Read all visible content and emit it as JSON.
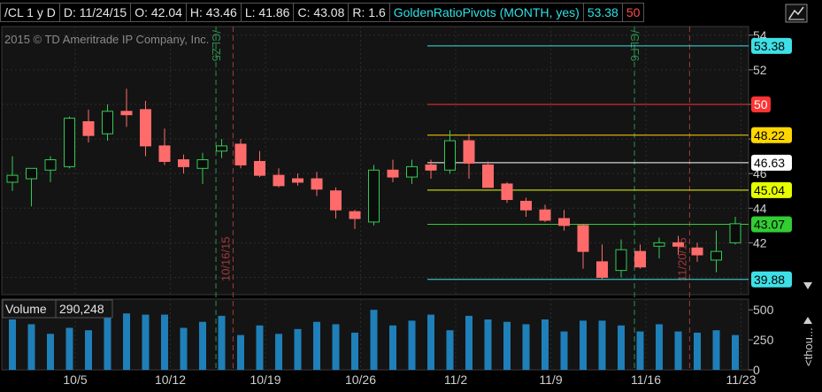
{
  "header": {
    "symbol": "/CL 1 y D",
    "date": "D: 11/24/15",
    "open": "O: 42.04",
    "high": "H: 43.46",
    "low": "L: 41.86",
    "close": "C: 43.08",
    "range": "R: 1.6",
    "study": "GoldenRatioPivots (MONTH, yes)",
    "study_val1": "53.38",
    "study_val2": "50"
  },
  "copyright": "2015 © TD Ameritrade IP Company, Inc.",
  "chart_data": {
    "type": "candlestick",
    "yrange": [
      39,
      54.5
    ],
    "y_ticks": [
      "54",
      "52",
      "50",
      "48",
      "46",
      "44",
      "42"
    ],
    "x_ticks": [
      "10/5",
      "10/12",
      "10/19",
      "10/26",
      "11/2",
      "11/9",
      "11/16",
      "11/23"
    ],
    "candles": [
      [
        45.5,
        47.0,
        45.0,
        45.9
      ],
      [
        45.7,
        46.3,
        44.1,
        46.3
      ],
      [
        46.2,
        47.0,
        45.5,
        46.8
      ],
      [
        46.4,
        49.3,
        46.3,
        49.2
      ],
      [
        49.0,
        49.7,
        47.8,
        48.2
      ],
      [
        48.3,
        50.0,
        47.9,
        49.6
      ],
      [
        49.6,
        50.9,
        48.7,
        49.4
      ],
      [
        49.7,
        50.2,
        47.0,
        47.6
      ],
      [
        47.6,
        48.6,
        46.5,
        46.7
      ],
      [
        46.8,
        47.1,
        46.0,
        46.4
      ],
      [
        46.3,
        47.2,
        45.4,
        46.8
      ],
      [
        47.3,
        48.0,
        46.9,
        47.6
      ],
      [
        47.7,
        48.0,
        46.3,
        46.5
      ],
      [
        46.7,
        47.3,
        45.8,
        45.9
      ],
      [
        45.9,
        46.3,
        45.2,
        45.3
      ],
      [
        45.7,
        46.0,
        45.3,
        45.5
      ],
      [
        45.7,
        46.1,
        44.7,
        45.1
      ],
      [
        45.0,
        45.2,
        43.4,
        43.9
      ],
      [
        43.8,
        43.9,
        42.8,
        43.4
      ],
      [
        43.2,
        46.5,
        43.0,
        46.2
      ],
      [
        46.2,
        46.8,
        45.5,
        45.8
      ],
      [
        45.8,
        46.8,
        45.4,
        46.4
      ],
      [
        46.5,
        46.8,
        45.7,
        46.2
      ],
      [
        46.2,
        48.5,
        46.0,
        47.9
      ],
      [
        47.9,
        48.3,
        45.7,
        46.6
      ],
      [
        46.5,
        46.7,
        45.2,
        45.2
      ],
      [
        45.4,
        45.5,
        44.3,
        44.5
      ],
      [
        44.4,
        44.6,
        43.5,
        43.9
      ],
      [
        43.9,
        44.2,
        43.2,
        43.3
      ],
      [
        43.4,
        43.9,
        42.7,
        43.0
      ],
      [
        43.0,
        43.1,
        40.5,
        41.5
      ],
      [
        40.9,
        41.9,
        39.9,
        40.0
      ],
      [
        40.4,
        42.2,
        40.0,
        41.6
      ],
      [
        41.5,
        41.9,
        40.5,
        40.6
      ],
      [
        41.8,
        42.3,
        41.1,
        42.0
      ],
      [
        42.0,
        42.4,
        41.3,
        41.8
      ],
      [
        41.7,
        42.0,
        40.9,
        41.3
      ],
      [
        41.0,
        42.7,
        40.3,
        41.5
      ],
      [
        42.0,
        43.5,
        41.9,
        43.1
      ]
    ],
    "pivots": [
      {
        "value": 53.38,
        "label": "53.38",
        "color": "#3ee0e6"
      },
      {
        "value": 50,
        "label": "50",
        "color": "#ff3333"
      },
      {
        "value": 48.22,
        "label": "48.22",
        "color": "#ffd700"
      },
      {
        "value": 46.63,
        "label": "46.63",
        "color": "#ffffff"
      },
      {
        "value": 45.04,
        "label": "45.04",
        "color": "#e6ff00"
      },
      {
        "value": 43.07,
        "label": "43.07",
        "color": "#33cc33"
      },
      {
        "value": 39.88,
        "label": "39.88",
        "color": "#3ee0e6"
      }
    ],
    "vlines": [
      {
        "label": "/CLZ5",
        "color": "#2f8f4f"
      },
      {
        "label": "10/16/15",
        "color": "#a33a3a"
      },
      {
        "label": "/CLF6",
        "color": "#2f8f4f"
      },
      {
        "label": "11/20/15",
        "color": "#a33a3a"
      }
    ],
    "volume_label": "Volume",
    "volume_value": "290,248",
    "volume_ticks": [
      "500",
      "250",
      "0"
    ],
    "volume_unit": "<thou...",
    "volume": [
      420,
      380,
      300,
      350,
      330,
      490,
      470,
      460,
      460,
      350,
      400,
      450,
      290,
      370,
      300,
      340,
      400,
      380,
      310,
      500,
      370,
      410,
      460,
      330,
      450,
      420,
      400,
      380,
      420,
      320,
      410,
      410,
      370,
      320,
      380,
      320,
      310,
      330,
      290
    ]
  }
}
